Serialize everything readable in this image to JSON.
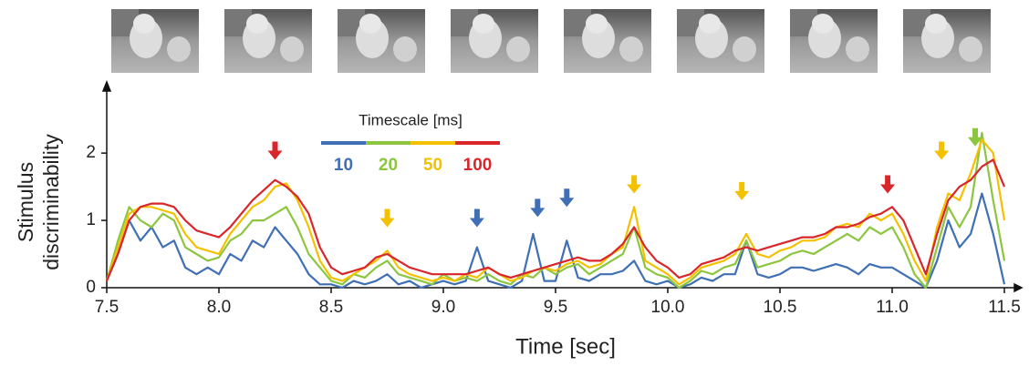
{
  "chart_data": {
    "type": "line",
    "xlabel": "Time [sec]",
    "ylabel": [
      "Stimulus",
      "discriminability"
    ],
    "legend_title": "Timescale [ms]",
    "xlim": [
      7.5,
      11.5
    ],
    "ylim": [
      0,
      2.8
    ],
    "xticks": [
      7.5,
      {
        "value": 8,
        "label": "8.0"
      },
      8.5,
      {
        "value": 9,
        "label": "9.0"
      },
      9.5,
      {
        "value": 10,
        "label": "10.0"
      },
      10.5,
      {
        "value": 11,
        "label": "11.0"
      },
      11.5
    ],
    "yticks": [
      0,
      1,
      2
    ],
    "x": [
      7.5,
      7.55,
      7.6,
      7.65,
      7.7,
      7.75,
      7.8,
      7.85,
      7.9,
      7.95,
      8,
      8.05,
      8.1,
      8.15,
      8.2,
      8.25,
      8.3,
      8.35,
      8.4,
      8.45,
      8.5,
      8.55,
      8.6,
      8.65,
      8.7,
      8.75,
      8.8,
      8.85,
      8.9,
      8.95,
      9,
      9.05,
      9.1,
      9.15,
      9.2,
      9.25,
      9.3,
      9.35,
      9.4,
      9.45,
      9.5,
      9.55,
      9.6,
      9.65,
      9.7,
      9.75,
      9.8,
      9.85,
      9.9,
      9.95,
      10,
      10.05,
      10.1,
      10.15,
      10.2,
      10.25,
      10.3,
      10.35,
      10.4,
      10.45,
      10.5,
      10.55,
      10.6,
      10.65,
      10.7,
      10.75,
      10.8,
      10.85,
      10.9,
      10.95,
      11,
      11.05,
      11.1,
      11.15,
      11.2,
      11.25,
      11.3,
      11.35,
      11.4,
      11.45,
      11.5
    ],
    "series": [
      {
        "name": "10",
        "color": "#3f6fb5",
        "values": [
          0.1,
          0.5,
          1.0,
          0.7,
          0.9,
          0.6,
          0.7,
          0.3,
          0.2,
          0.3,
          0.2,
          0.5,
          0.4,
          0.7,
          0.6,
          0.9,
          0.7,
          0.5,
          0.2,
          0.05,
          0.05,
          0.0,
          0.1,
          0.05,
          0.1,
          0.2,
          0.05,
          0.1,
          0.0,
          0.05,
          0.1,
          0.05,
          0.1,
          0.6,
          0.1,
          0.05,
          0.0,
          0.1,
          0.8,
          0.1,
          0.1,
          0.7,
          0.15,
          0.1,
          0.2,
          0.2,
          0.25,
          0.4,
          0.1,
          0.05,
          0.1,
          0.0,
          0.05,
          0.15,
          0.1,
          0.2,
          0.2,
          0.7,
          0.2,
          0.15,
          0.2,
          0.3,
          0.3,
          0.25,
          0.3,
          0.35,
          0.3,
          0.2,
          0.35,
          0.3,
          0.3,
          0.2,
          0.1,
          0.0,
          0.4,
          1.0,
          0.6,
          0.8,
          1.4,
          0.8,
          0.05
        ]
      },
      {
        "name": "20",
        "color": "#8cc63f",
        "values": [
          0.1,
          0.7,
          1.2,
          1.0,
          0.9,
          1.1,
          1.0,
          0.6,
          0.5,
          0.4,
          0.45,
          0.7,
          0.8,
          1.0,
          1.0,
          1.1,
          1.2,
          0.9,
          0.5,
          0.3,
          0.1,
          0.05,
          0.2,
          0.15,
          0.3,
          0.4,
          0.2,
          0.15,
          0.1,
          0.05,
          0.2,
          0.1,
          0.15,
          0.1,
          0.2,
          0.1,
          0.05,
          0.2,
          0.15,
          0.3,
          0.2,
          0.3,
          0.35,
          0.2,
          0.3,
          0.4,
          0.5,
          0.9,
          0.3,
          0.2,
          0.15,
          0.0,
          0.1,
          0.25,
          0.2,
          0.3,
          0.35,
          0.7,
          0.3,
          0.35,
          0.4,
          0.5,
          0.55,
          0.5,
          0.6,
          0.7,
          0.8,
          0.7,
          0.9,
          0.8,
          0.9,
          0.6,
          0.2,
          0.0,
          0.6,
          1.2,
          0.9,
          1.2,
          2.3,
          1.3,
          0.4
        ]
      },
      {
        "name": "50",
        "color": "#f3c100",
        "values": [
          0.1,
          0.6,
          1.1,
          1.2,
          1.2,
          1.15,
          1.1,
          0.8,
          0.6,
          0.55,
          0.5,
          0.8,
          1.0,
          1.2,
          1.3,
          1.5,
          1.55,
          1.3,
          0.9,
          0.4,
          0.15,
          0.1,
          0.2,
          0.3,
          0.4,
          0.55,
          0.3,
          0.2,
          0.15,
          0.1,
          0.15,
          0.1,
          0.2,
          0.15,
          0.3,
          0.2,
          0.1,
          0.15,
          0.25,
          0.3,
          0.25,
          0.35,
          0.4,
          0.3,
          0.35,
          0.5,
          0.6,
          1.2,
          0.4,
          0.3,
          0.2,
          0.05,
          0.15,
          0.3,
          0.35,
          0.4,
          0.5,
          0.8,
          0.5,
          0.45,
          0.55,
          0.6,
          0.7,
          0.7,
          0.75,
          0.9,
          0.95,
          0.9,
          1.1,
          1.0,
          1.1,
          0.8,
          0.4,
          0.1,
          0.9,
          1.4,
          1.3,
          1.7,
          2.2,
          2.0,
          1.0
        ]
      },
      {
        "name": "100",
        "color": "#d8262b",
        "values": [
          0.1,
          0.5,
          1.0,
          1.2,
          1.25,
          1.25,
          1.2,
          1.0,
          0.85,
          0.8,
          0.75,
          0.9,
          1.1,
          1.3,
          1.45,
          1.6,
          1.5,
          1.35,
          1.1,
          0.6,
          0.3,
          0.2,
          0.25,
          0.3,
          0.45,
          0.5,
          0.4,
          0.3,
          0.25,
          0.2,
          0.2,
          0.2,
          0.2,
          0.25,
          0.3,
          0.2,
          0.15,
          0.2,
          0.25,
          0.3,
          0.35,
          0.4,
          0.45,
          0.4,
          0.4,
          0.5,
          0.65,
          0.9,
          0.6,
          0.4,
          0.3,
          0.15,
          0.2,
          0.35,
          0.4,
          0.45,
          0.55,
          0.6,
          0.55,
          0.6,
          0.65,
          0.7,
          0.75,
          0.75,
          0.8,
          0.9,
          0.9,
          0.95,
          1.05,
          1.1,
          1.2,
          1.0,
          0.6,
          0.2,
          0.8,
          1.3,
          1.5,
          1.6,
          1.8,
          1.9,
          1.5
        ]
      }
    ],
    "arrows": [
      {
        "x": 8.25,
        "y": 1.9,
        "color": "#d8262b"
      },
      {
        "x": 8.75,
        "y": 0.9,
        "color": "#f3c100"
      },
      {
        "x": 9.15,
        "y": 0.9,
        "color": "#3f6fb5"
      },
      {
        "x": 9.42,
        "y": 1.05,
        "color": "#3f6fb5"
      },
      {
        "x": 9.55,
        "y": 1.2,
        "color": "#3f6fb5"
      },
      {
        "x": 9.85,
        "y": 1.4,
        "color": "#f3c100"
      },
      {
        "x": 10.33,
        "y": 1.3,
        "color": "#f3c100"
      },
      {
        "x": 10.98,
        "y": 1.4,
        "color": "#d8262b"
      },
      {
        "x": 11.22,
        "y": 1.9,
        "color": "#f3c100"
      },
      {
        "x": 11.37,
        "y": 2.1,
        "color": "#8cc63f"
      }
    ]
  }
}
